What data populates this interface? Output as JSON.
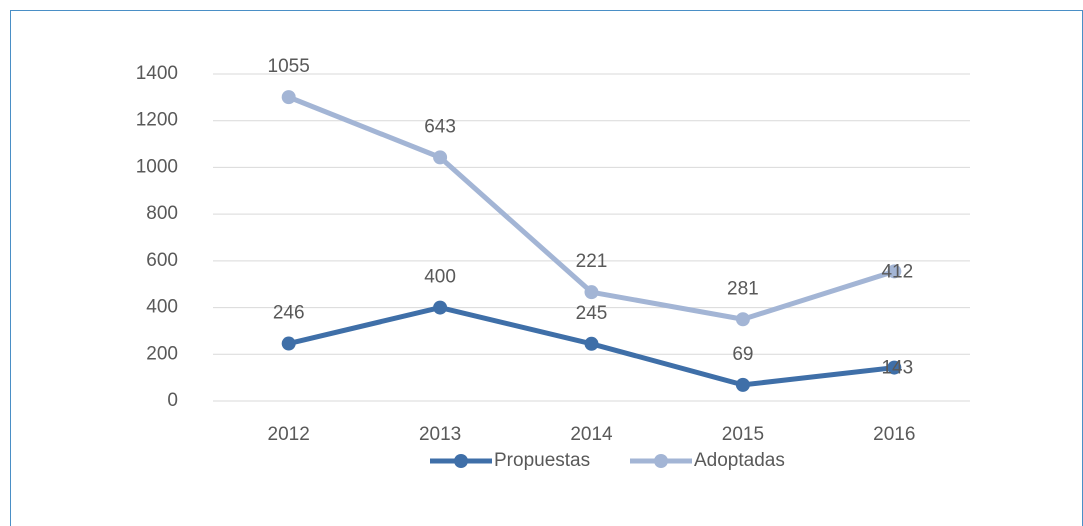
{
  "chart_data": {
    "type": "line",
    "stacked": true,
    "categories": [
      "2012",
      "2013",
      "2014",
      "2015",
      "2016"
    ],
    "series": [
      {
        "name": "Propuestas",
        "color": "#3f6fa8",
        "values": [
          246,
          400,
          245,
          69,
          143
        ]
      },
      {
        "name": "Adoptadas",
        "color": "#a3b5d5",
        "values": [
          1055,
          643,
          221,
          281,
          412
        ]
      }
    ],
    "ylim": [
      0,
      1400
    ],
    "yticks": [
      0,
      200,
      400,
      600,
      800,
      1000,
      1200,
      1400
    ],
    "grid": true,
    "legend": "bottom"
  }
}
